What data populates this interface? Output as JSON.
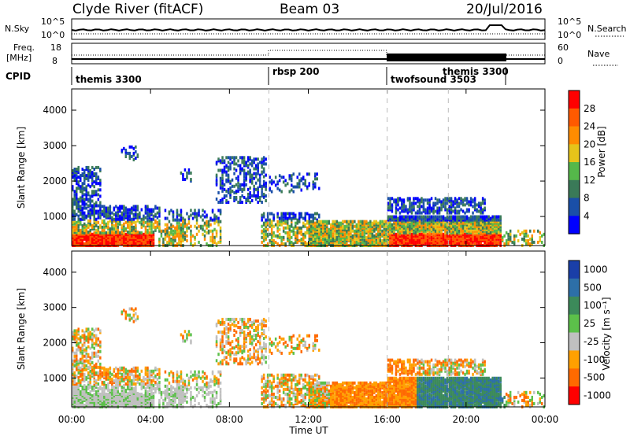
{
  "header": {
    "title": "Clyde River (fitACF)",
    "beam": "Beam 03",
    "date": "20/Jul/2016"
  },
  "top_panel": {
    "left_label": "N.Sky",
    "left_ticks": [
      "10^5",
      "10^0"
    ],
    "right_ticks": [
      "10^5",
      "10^0"
    ],
    "right_label": "N.Search"
  },
  "freq_panel": {
    "left_label_1": "Freq.",
    "left_label_2": "[MHz]",
    "left_ticks": [
      "18",
      "8"
    ],
    "right_ticks": [
      "60",
      "0"
    ],
    "right_label": "Nave"
  },
  "cpid_panel": {
    "label": "CPID",
    "modes": [
      {
        "name": "themis 3300",
        "start_hour": 0
      },
      {
        "name": "rbsp 200",
        "start_hour": 10
      },
      {
        "name": "twofsound 3503",
        "start_hour": 16
      },
      {
        "name": "themis 3300",
        "start_hour": 19.1
      }
    ]
  },
  "colors": {
    "power": [
      "#0000ff",
      "#1a4fa8",
      "#3a7a58",
      "#55b84a",
      "#e6c41a",
      "#ff8c00",
      "#ff5a00",
      "#ff0000"
    ],
    "velocity": [
      "#1a3fa8",
      "#2d6fa8",
      "#3c8a5a",
      "#5cc04a",
      "#c0c0c0",
      "#ffa000",
      "#ff6a00",
      "#ff0000"
    ]
  },
  "chart_data": [
    {
      "type": "heatmap",
      "name": "power",
      "ylabel": "Slant Range [km]",
      "ylim": [
        180,
        4600
      ],
      "yticks": [
        "1000",
        "2000",
        "3000",
        "4000"
      ],
      "xlim": [
        0,
        24
      ],
      "xticks": [
        "00:00",
        "04:00",
        "08:00",
        "12:00",
        "16:00",
        "20:00",
        "00:00"
      ],
      "colorbar_label": "Power [dB]",
      "colorbar_ticks": [
        "4",
        "8",
        "12",
        "16",
        "20",
        "24",
        "28"
      ]
    },
    {
      "type": "heatmap",
      "name": "velocity",
      "ylabel": "Slant Range [km]",
      "ylim": [
        180,
        4600
      ],
      "yticks": [
        "1000",
        "2000",
        "3000",
        "4000"
      ],
      "xlim": [
        0,
        24
      ],
      "xticks": [
        "00:00",
        "04:00",
        "08:00",
        "12:00",
        "16:00",
        "20:00",
        "00:00"
      ],
      "xlabel": "Time UT",
      "colorbar_label": "Velocity [m s⁻¹]",
      "colorbar_ticks": [
        "1000",
        "500",
        "100",
        "25",
        "-25",
        "-100",
        "-500",
        "-1000"
      ]
    }
  ]
}
